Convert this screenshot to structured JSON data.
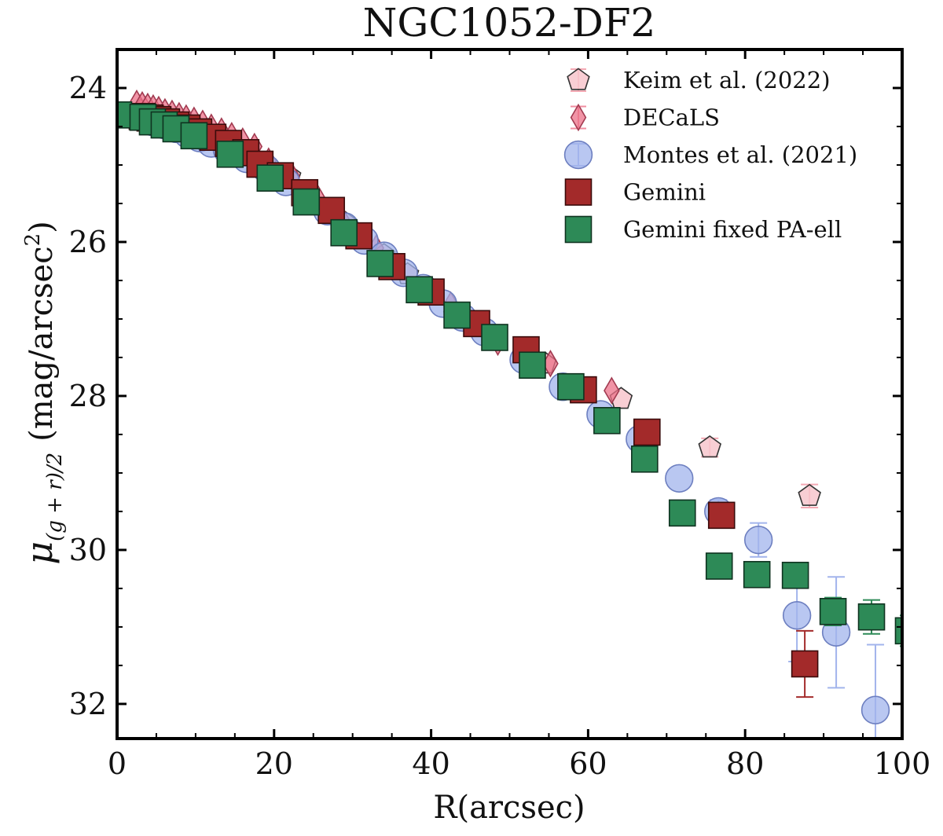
{
  "chart_data": {
    "type": "scatter",
    "title": "NGC1052-DF2",
    "xlabel": "R(arcsec)",
    "ylabel": {
      "main": "μ",
      "sub": "(g + r)/2",
      "unit": "(mag/arcsec",
      "sup": "2",
      "close": ")"
    },
    "xlim": [
      0,
      100
    ],
    "ylim": [
      32.45,
      23.5
    ],
    "y_inverted": true,
    "xticks": [
      0,
      20,
      40,
      60,
      80,
      100
    ],
    "yticks": [
      24,
      26,
      28,
      30,
      32
    ],
    "grid": false,
    "legend_position": "top-right",
    "series": [
      {
        "name": "Keim et al. (2022)",
        "marker": "pentagon",
        "color": "#f7c6cc",
        "edge": "#333333",
        "errcolor": "#f4a9b4",
        "points": [
          {
            "x": 3.0,
            "y": 24.3
          },
          {
            "x": 4.5,
            "y": 24.38
          },
          {
            "x": 6.0,
            "y": 24.45
          },
          {
            "x": 7.5,
            "y": 24.5
          },
          {
            "x": 9.0,
            "y": 24.57
          },
          {
            "x": 11.0,
            "y": 24.65
          },
          {
            "x": 13.5,
            "y": 24.75
          },
          {
            "x": 16.0,
            "y": 24.87
          },
          {
            "x": 18.5,
            "y": 25.0
          },
          {
            "x": 22.0,
            "y": 25.15
          },
          {
            "x": 24.0,
            "y": 25.42
          },
          {
            "x": 27.0,
            "y": 25.6
          },
          {
            "x": 29.0,
            "y": 25.75
          },
          {
            "x": 34.0,
            "y": 26.17
          },
          {
            "x": 37.0,
            "y": 26.42
          },
          {
            "x": 40.0,
            "y": 26.68
          },
          {
            "x": 43.0,
            "y": 26.95
          },
          {
            "x": 46.0,
            "y": 27.05
          },
          {
            "x": 48.0,
            "y": 27.25
          },
          {
            "x": 54.5,
            "y": 27.58
          },
          {
            "x": 64.2,
            "y": 28.04
          },
          {
            "x": 75.5,
            "y": 28.67,
            "err": 0.12
          },
          {
            "x": 88.2,
            "y": 29.3,
            "err": 0.15
          }
        ]
      },
      {
        "name": "DECaLS",
        "marker": "diamond",
        "color": "#ec7088",
        "edge": "#a13a50",
        "errcolor": "#f08ea0",
        "points": [
          {
            "x": 2.5,
            "y": 24.2
          },
          {
            "x": 3.2,
            "y": 24.22
          },
          {
            "x": 3.9,
            "y": 24.24
          },
          {
            "x": 4.6,
            "y": 24.26
          },
          {
            "x": 5.3,
            "y": 24.28
          },
          {
            "x": 6.1,
            "y": 24.31
          },
          {
            "x": 7.0,
            "y": 24.33
          },
          {
            "x": 7.9,
            "y": 24.36
          },
          {
            "x": 8.8,
            "y": 24.39
          },
          {
            "x": 9.8,
            "y": 24.42
          },
          {
            "x": 10.9,
            "y": 24.46
          },
          {
            "x": 12.0,
            "y": 24.51
          },
          {
            "x": 13.3,
            "y": 24.56
          },
          {
            "x": 14.6,
            "y": 24.62
          },
          {
            "x": 16.0,
            "y": 24.69
          },
          {
            "x": 17.5,
            "y": 24.76
          },
          {
            "x": 19.3,
            "y": 24.95
          },
          {
            "x": 22.3,
            "y": 25.15
          },
          {
            "x": 25.5,
            "y": 25.42
          },
          {
            "x": 28.7,
            "y": 25.72
          },
          {
            "x": 33.0,
            "y": 26.08
          },
          {
            "x": 42.5,
            "y": 26.82
          },
          {
            "x": 48.5,
            "y": 27.3
          },
          {
            "x": 55.2,
            "y": 27.58
          },
          {
            "x": 63.0,
            "y": 27.93
          }
        ]
      },
      {
        "name": "Montes et al. (2021)",
        "marker": "circle",
        "color": "#a2b4ec",
        "edge": "#6d7fc0",
        "errcolor": "#a2b4ec",
        "points": [
          {
            "x": 3.0,
            "y": 24.38
          },
          {
            "x": 4.5,
            "y": 24.44
          },
          {
            "x": 6.0,
            "y": 24.48
          },
          {
            "x": 7.5,
            "y": 24.53
          },
          {
            "x": 9.0,
            "y": 24.6
          },
          {
            "x": 10.5,
            "y": 24.65
          },
          {
            "x": 12.0,
            "y": 24.72
          },
          {
            "x": 14.0,
            "y": 24.8
          },
          {
            "x": 16.5,
            "y": 24.92
          },
          {
            "x": 19.0,
            "y": 25.05
          },
          {
            "x": 21.5,
            "y": 25.22
          },
          {
            "x": 24.0,
            "y": 25.43
          },
          {
            "x": 26.8,
            "y": 25.6
          },
          {
            "x": 29.0,
            "y": 25.8
          },
          {
            "x": 31.5,
            "y": 25.98
          },
          {
            "x": 34.0,
            "y": 26.18
          },
          {
            "x": 36.5,
            "y": 26.4
          },
          {
            "x": 39.0,
            "y": 26.6
          },
          {
            "x": 41.5,
            "y": 26.8
          },
          {
            "x": 44.0,
            "y": 26.98
          },
          {
            "x": 46.8,
            "y": 27.17
          },
          {
            "x": 51.8,
            "y": 27.53
          },
          {
            "x": 56.8,
            "y": 27.88
          },
          {
            "x": 61.6,
            "y": 28.24
          },
          {
            "x": 66.6,
            "y": 28.56
          },
          {
            "x": 71.6,
            "y": 29.07
          },
          {
            "x": 76.6,
            "y": 29.5,
            "err": 0.15
          },
          {
            "x": 81.7,
            "y": 29.87,
            "err": 0.22
          },
          {
            "x": 86.6,
            "y": 30.85,
            "err": 0.6
          },
          {
            "x": 91.6,
            "y": 31.07,
            "err": 0.72
          },
          {
            "x": 96.6,
            "y": 32.08,
            "err": 0.85
          }
        ]
      },
      {
        "name": "Gemini",
        "marker": "square",
        "color": "#a32a2a",
        "edge": "#3a0b0b",
        "errcolor": "#a32a2a",
        "points": [
          {
            "x": 3.2,
            "y": 24.37
          },
          {
            "x": 4.2,
            "y": 24.39
          },
          {
            "x": 5.2,
            "y": 24.41
          },
          {
            "x": 6.3,
            "y": 24.44
          },
          {
            "x": 7.5,
            "y": 24.48
          },
          {
            "x": 8.9,
            "y": 24.52
          },
          {
            "x": 10.4,
            "y": 24.57
          },
          {
            "x": 12.2,
            "y": 24.64
          },
          {
            "x": 14.2,
            "y": 24.72
          },
          {
            "x": 16.4,
            "y": 24.84
          },
          {
            "x": 18.2,
            "y": 24.99
          },
          {
            "x": 20.8,
            "y": 25.14
          },
          {
            "x": 23.9,
            "y": 25.36
          },
          {
            "x": 27.3,
            "y": 25.59
          },
          {
            "x": 30.8,
            "y": 25.92
          },
          {
            "x": 35.0,
            "y": 26.32
          },
          {
            "x": 40.0,
            "y": 26.65
          },
          {
            "x": 45.8,
            "y": 27.06
          },
          {
            "x": 52.1,
            "y": 27.4
          },
          {
            "x": 59.4,
            "y": 27.92
          },
          {
            "x": 67.5,
            "y": 28.47
          },
          {
            "x": 77.0,
            "y": 29.55
          },
          {
            "x": 87.6,
            "y": 31.48,
            "err": 0.43
          }
        ]
      },
      {
        "name": "Gemini fixed PA-ell",
        "marker": "square",
        "color": "#2d8a57",
        "edge": "#0f3320",
        "errcolor": "#2d8a57",
        "points": [
          {
            "x": 0.2,
            "y": 24.35
          },
          {
            "x": 3.3,
            "y": 24.38
          },
          {
            "x": 4.5,
            "y": 24.44
          },
          {
            "x": 6.0,
            "y": 24.48
          },
          {
            "x": 7.5,
            "y": 24.53
          },
          {
            "x": 9.8,
            "y": 24.62
          },
          {
            "x": 14.4,
            "y": 24.86
          },
          {
            "x": 19.5,
            "y": 25.17
          },
          {
            "x": 24.1,
            "y": 25.48
          },
          {
            "x": 28.9,
            "y": 25.88
          },
          {
            "x": 33.5,
            "y": 26.28
          },
          {
            "x": 38.5,
            "y": 26.62
          },
          {
            "x": 43.3,
            "y": 26.95
          },
          {
            "x": 48.1,
            "y": 27.24
          },
          {
            "x": 52.9,
            "y": 27.6
          },
          {
            "x": 57.8,
            "y": 27.88
          },
          {
            "x": 62.4,
            "y": 28.32
          },
          {
            "x": 67.2,
            "y": 28.82
          },
          {
            "x": 72.0,
            "y": 29.52
          },
          {
            "x": 76.7,
            "y": 30.21
          },
          {
            "x": 81.5,
            "y": 30.32
          },
          {
            "x": 86.4,
            "y": 30.33,
            "err": 0.15
          },
          {
            "x": 91.2,
            "y": 30.8,
            "err": 0.18
          },
          {
            "x": 96.1,
            "y": 30.87,
            "err": 0.22
          },
          {
            "x": 100.8,
            "y": 31.05,
            "err": 0.2
          }
        ]
      }
    ]
  }
}
